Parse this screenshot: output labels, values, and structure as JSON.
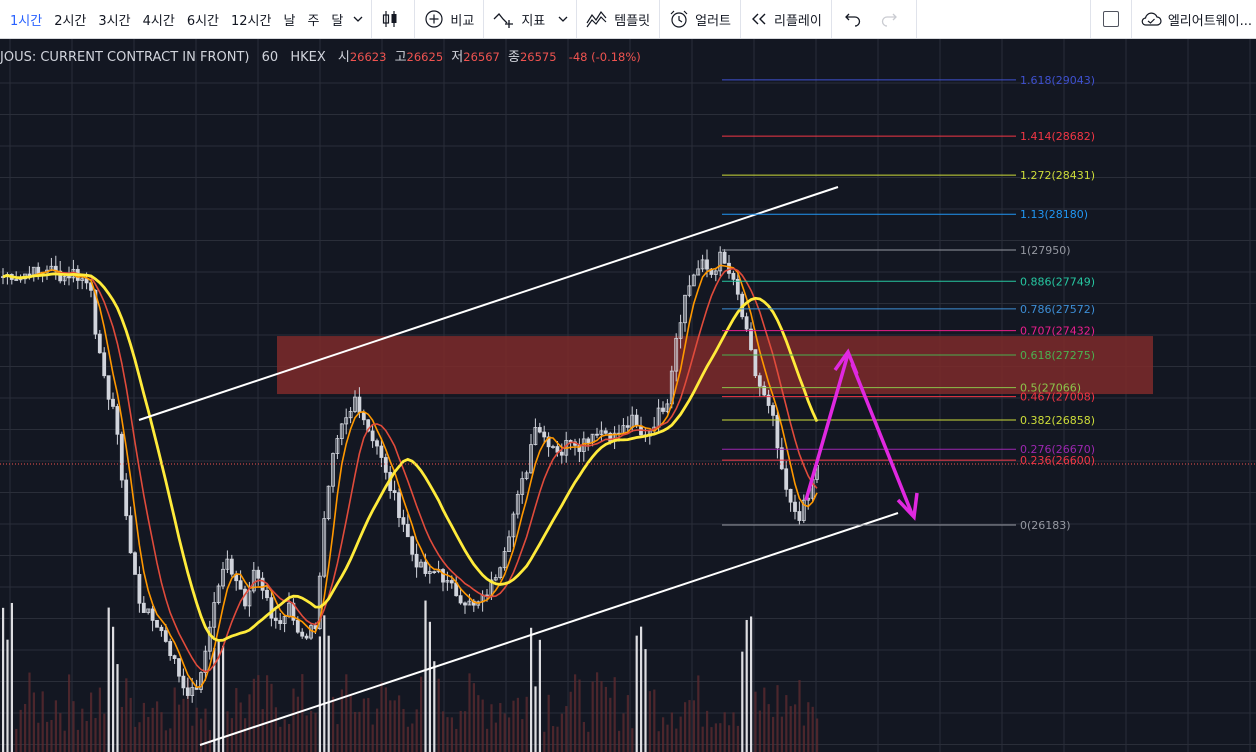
{
  "toolbar": {
    "intervals": [
      "1시간",
      "2시간",
      "3시간",
      "4시간",
      "6시간",
      "12시간",
      "날",
      "주",
      "달"
    ],
    "active_interval": "1시간",
    "compare_label": "비교",
    "indicators_label": "지표",
    "templates_label": "템플릿",
    "alert_label": "얼러트",
    "replay_label": "리플레이",
    "account_label": "엘리어트웨이..."
  },
  "legend": {
    "symbol": "JOUS: CURRENT CONTRACT IN FRONT)",
    "interval": "60",
    "exchange": "HKEX",
    "open_label": "시",
    "open": "26623",
    "high_label": "고",
    "high": "26625",
    "low_label": "저",
    "low": "26567",
    "close_label": "종",
    "close": "26575",
    "change": "-48 (-0.18%)"
  },
  "colors": {
    "background": "#131722",
    "candle": "#d1d4dc",
    "ma_yellow": "#ffeb3b",
    "ma_orange": "#ff9800",
    "ma_red": "#e04b3b",
    "zone": "#7e2a2a",
    "arrow": "#e028e0",
    "channel": "#ffffff",
    "last_price": "#ef5350"
  },
  "fib_levels": [
    {
      "label": "1.618(29043)",
      "color": "#3f51d0"
    },
    {
      "label": "1.414(28682)",
      "color": "#f23645"
    },
    {
      "label": "1.272(28431)",
      "color": "#cddc39"
    },
    {
      "label": "1.13(28180)",
      "color": "#2196f3"
    },
    {
      "label": "1(27950)",
      "color": "#9598a1"
    },
    {
      "label": "0.886(27749)",
      "color": "#26c6a0"
    },
    {
      "label": "0.786(27572)",
      "color": "#3d8ed6"
    },
    {
      "label": "0.707(27432)",
      "color": "#e91e8c"
    },
    {
      "label": "0.618(27275)",
      "color": "#4caf50"
    },
    {
      "label": "0.5(27066)",
      "color": "#8bc34a"
    },
    {
      "label": "0.467(27008)",
      "color": "#f23645"
    },
    {
      "label": "0.382(26858)",
      "color": "#cddc39"
    },
    {
      "label": "0.276(26670)",
      "color": "#9c27b0"
    },
    {
      "label": "0.236(26600)",
      "color": "#f23645"
    },
    {
      "label": "0(26183)",
      "color": "#9598a1"
    }
  ],
  "chart_data": {
    "type": "candlestick",
    "ohlc_last": {
      "open": 26623,
      "high": 26625,
      "low": 26567,
      "close": 26575
    },
    "price_path": [
      [
        0,
        27780
      ],
      [
        2,
        27795
      ],
      [
        4,
        27770
      ],
      [
        6,
        27820
      ],
      [
        8,
        27790
      ],
      [
        10,
        27840
      ],
      [
        12,
        27800
      ],
      [
        14,
        27780
      ],
      [
        16,
        27810
      ],
      [
        18,
        27760
      ],
      [
        20,
        27720
      ],
      [
        21,
        27450
      ],
      [
        22,
        27250
      ],
      [
        23,
        27100
      ],
      [
        25,
        26950
      ],
      [
        27,
        26500
      ],
      [
        29,
        26000
      ],
      [
        31,
        25700
      ],
      [
        33,
        25600
      ],
      [
        35,
        25550
      ],
      [
        37,
        25450
      ],
      [
        39,
        25300
      ],
      [
        41,
        25150
      ],
      [
        43,
        25100
      ],
      [
        45,
        25200
      ],
      [
        47,
        25550
      ],
      [
        49,
        25800
      ],
      [
        51,
        25950
      ],
      [
        53,
        25850
      ],
      [
        55,
        25700
      ],
      [
        57,
        25900
      ],
      [
        59,
        25750
      ],
      [
        61,
        25600
      ],
      [
        63,
        25550
      ],
      [
        65,
        25650
      ],
      [
        67,
        25500
      ],
      [
        69,
        25480
      ],
      [
        71,
        25550
      ],
      [
        73,
        26200
      ],
      [
        75,
        26600
      ],
      [
        77,
        26800
      ],
      [
        79,
        26900
      ],
      [
        80,
        27000
      ],
      [
        81,
        26950
      ],
      [
        83,
        26800
      ],
      [
        85,
        26700
      ],
      [
        87,
        26500
      ],
      [
        89,
        26350
      ],
      [
        91,
        26200
      ],
      [
        93,
        26000
      ],
      [
        95,
        25900
      ],
      [
        97,
        25850
      ],
      [
        99,
        25900
      ],
      [
        101,
        25800
      ],
      [
        103,
        25750
      ],
      [
        105,
        25700
      ],
      [
        107,
        25650
      ],
      [
        109,
        25700
      ],
      [
        111,
        25800
      ],
      [
        113,
        25950
      ],
      [
        115,
        26150
      ],
      [
        117,
        26350
      ],
      [
        119,
        26550
      ],
      [
        121,
        26850
      ],
      [
        123,
        26750
      ],
      [
        125,
        26700
      ],
      [
        127,
        26650
      ],
      [
        129,
        26750
      ],
      [
        131,
        26700
      ],
      [
        133,
        26750
      ],
      [
        135,
        26800
      ],
      [
        137,
        26780
      ],
      [
        139,
        26750
      ],
      [
        141,
        26800
      ],
      [
        143,
        26850
      ],
      [
        145,
        26750
      ],
      [
        147,
        26800
      ],
      [
        149,
        26900
      ],
      [
        151,
        27000
      ],
      [
        153,
        27400
      ],
      [
        155,
        27650
      ],
      [
        157,
        27800
      ],
      [
        159,
        27850
      ],
      [
        161,
        27800
      ],
      [
        163,
        27900
      ],
      [
        165,
        27800
      ],
      [
        167,
        27650
      ],
      [
        169,
        27400
      ],
      [
        171,
        27150
      ],
      [
        173,
        27000
      ],
      [
        175,
        26850
      ],
      [
        177,
        26500
      ],
      [
        179,
        26300
      ],
      [
        181,
        26250
      ],
      [
        183,
        26350
      ],
      [
        185,
        26575
      ]
    ]
  }
}
